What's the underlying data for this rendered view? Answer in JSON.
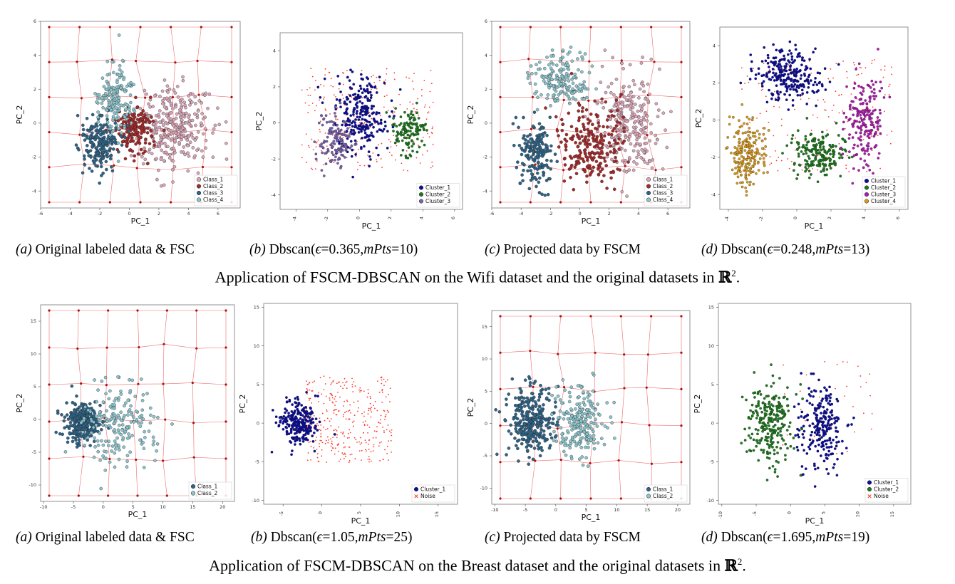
{
  "rows": [
    {
      "dataset": "Wifi",
      "app_prefix": "Application of FSCM-DBSCAN on the ",
      "app_suffix": " dataset and the original datasets in ",
      "set_symbol": "ℝ",
      "set_exponent": "2",
      "set_end": ".",
      "captions": [
        {
          "tag": "(a)",
          "text": " Original labeled data & FSC"
        },
        {
          "tag": "(b)",
          "text": " Dbscan(",
          "eps": "ϵ",
          "eps_val": "=0.365,",
          "mpts": "mPts",
          "mpts_val": "=10)"
        },
        {
          "tag": "(c)",
          "text": " Projected data by FSCM"
        },
        {
          "tag": "(d)",
          "text": " Dbscan(",
          "eps": "ϵ",
          "eps_val": "=0.248,",
          "mpts": "mPts",
          "mpts_val": "=13)"
        }
      ]
    },
    {
      "dataset": "Breast",
      "app_prefix": "Application of FSCM-DBSCAN on the ",
      "app_suffix": " dataset and the original datasets in ",
      "set_symbol": "ℝ",
      "set_exponent": "2",
      "set_end": ".",
      "captions": [
        {
          "tag": "(a)",
          "text": " Original labeled data & FSC"
        },
        {
          "tag": "(b)",
          "text": " Dbscan(",
          "eps": "ϵ",
          "eps_val": "=1.05,",
          "mpts": "mPts",
          "mpts_val": "=25)"
        },
        {
          "tag": "(c)",
          "text": " Projected data by FSCM"
        },
        {
          "tag": "(d)",
          "text": " Dbscan(",
          "eps": "ϵ",
          "eps_val": "=1.695,",
          "mpts": "mPts",
          "mpts_val": "=19)"
        }
      ]
    }
  ],
  "colors": {
    "class_1": "#d9a6b8",
    "class_2": "#a52a2a",
    "class_3": "#2e6488",
    "class_4": "#8cc4cc",
    "cluster_1": "#0d0d9e",
    "cluster_2": "#1e7a1e",
    "cluster_3": "#7b62ae",
    "cluster_4": "#d69b1c",
    "cluster_3_magenta": "#b01cb0",
    "noise": "#ff3b2f",
    "grid": "#e63c3c"
  },
  "chart_data": [
    {
      "id": "wifi-a",
      "type": "scatter",
      "title": "",
      "xlabel": "PC_1",
      "ylabel": "PC_2",
      "xlim": [
        -6,
        7.5
      ],
      "ylim": [
        -5,
        6
      ],
      "xticks": [
        "-6",
        "-4",
        "-2",
        "0",
        "2",
        "4",
        "6"
      ],
      "yticks": [
        "-4",
        "-2",
        "0",
        "2",
        "4",
        "6"
      ],
      "fsc_grid": true,
      "legend_loc": "lower-right",
      "series": [
        {
          "name": "Class_1",
          "color": "#d9a6b8",
          "n": 320,
          "clusters": [
            {
              "cx": 3.0,
              "cy": -0.3,
              "sx": 1.15,
              "sy": 1.2
            }
          ]
        },
        {
          "name": "Class_2",
          "color": "#a52a2a",
          "n": 170,
          "clusters": [
            {
              "cx": 0.3,
              "cy": -0.3,
              "sx": 0.6,
              "sy": 0.7
            }
          ]
        },
        {
          "name": "Class_3",
          "color": "#2e6488",
          "n": 200,
          "clusters": [
            {
              "cx": -1.9,
              "cy": -1.2,
              "sx": 0.6,
              "sy": 0.8
            }
          ]
        },
        {
          "name": "Class_4",
          "color": "#8cc4cc",
          "n": 170,
          "clusters": [
            {
              "cx": -1.0,
              "cy": 1.5,
              "sx": 0.55,
              "sy": 1.0
            }
          ]
        }
      ]
    },
    {
      "id": "wifi-b",
      "type": "scatter",
      "title": "",
      "xlabel": "PC_1",
      "ylabel": "PC_2",
      "xlim": [
        -5,
        6.5
      ],
      "ylim": [
        -4.8,
        5
      ],
      "xticks": [
        "-4",
        "-2",
        "0",
        "2",
        "4",
        "6"
      ],
      "yticks": [
        "-4",
        "-2",
        "0",
        "2",
        "4"
      ],
      "xtick_rotate": true,
      "fsc_grid": false,
      "legend_loc": "lower-right",
      "series": [
        {
          "name": "",
          "color": "#ff3b2f",
          "n": 230,
          "noise": true,
          "clusters": [
            {
              "cx": 0.5,
              "cy": 0.2,
              "sx": 2.6,
              "sy": 1.8
            }
          ]
        },
        {
          "name": "Cluster_1",
          "color": "#0d0d9e",
          "n": 260,
          "clusters": [
            {
              "cx": 0.1,
              "cy": 0.5,
              "sx": 0.8,
              "sy": 1.1
            }
          ]
        },
        {
          "name": "Cluster_2",
          "color": "#1e7a1e",
          "n": 120,
          "clusters": [
            {
              "cx": 3.0,
              "cy": -0.5,
              "sx": 0.55,
              "sy": 0.55
            }
          ]
        },
        {
          "name": "Cluster_3",
          "color": "#7b62ae",
          "n": 130,
          "clusters": [
            {
              "cx": -1.5,
              "cy": -1.0,
              "sx": 0.5,
              "sy": 0.8
            }
          ]
        }
      ]
    },
    {
      "id": "wifi-c",
      "type": "scatter",
      "title": "",
      "xlabel": "PC_1",
      "ylabel": "PC_2",
      "xlim": [
        -6,
        7.5
      ],
      "ylim": [
        -5,
        6
      ],
      "xticks": [
        "-6",
        "-4",
        "-2",
        "0",
        "2",
        "4",
        "6"
      ],
      "yticks": [
        "-4",
        "-2",
        "0",
        "2",
        "4",
        "6"
      ],
      "fsc_grid": true,
      "legend_loc": "lower-right",
      "series": [
        {
          "name": "Class_1",
          "color": "#d9a6b8",
          "n": 260,
          "clusters": [
            {
              "cx": 3.5,
              "cy": 0.0,
              "sx": 1.0,
              "sy": 1.5
            }
          ]
        },
        {
          "name": "Class_2",
          "color": "#a52a2a",
          "n": 240,
          "clusters": [
            {
              "cx": 0.8,
              "cy": -1.2,
              "sx": 1.2,
              "sy": 1.2
            }
          ]
        },
        {
          "name": "Class_3",
          "color": "#2e6488",
          "n": 180,
          "clusters": [
            {
              "cx": -3.0,
              "cy": -1.8,
              "sx": 0.55,
              "sy": 1.0
            }
          ]
        },
        {
          "name": "Class_4",
          "color": "#8cc4cc",
          "n": 180,
          "clusters": [
            {
              "cx": -1.3,
              "cy": 2.7,
              "sx": 1.0,
              "sy": 0.8
            }
          ]
        }
      ]
    },
    {
      "id": "wifi-d",
      "type": "scatter",
      "title": "",
      "xlabel": "PC_1",
      "ylabel": "PC_2",
      "xlim": [
        -4.5,
        6.5
      ],
      "ylim": [
        -4.8,
        5
      ],
      "xticks": [
        "-4",
        "-2",
        "0",
        "2",
        "4",
        "6"
      ],
      "yticks": [
        "-4",
        "-2",
        "0",
        "2",
        "4"
      ],
      "xtick_rotate": true,
      "fsc_grid": false,
      "legend_loc": "lower-right",
      "series": [
        {
          "name": "",
          "color": "#ff3b2f",
          "n": 180,
          "noise": true,
          "clusters": [
            {
              "cx": 1.2,
              "cy": 0.2,
              "sx": 2.8,
              "sy": 1.9
            }
          ]
        },
        {
          "name": "Cluster_1",
          "color": "#0d0d9e",
          "n": 260,
          "clusters": [
            {
              "cx": -0.5,
              "cy": 2.5,
              "sx": 1.0,
              "sy": 0.75
            }
          ]
        },
        {
          "name": "Cluster_2",
          "color": "#1e7a1e",
          "n": 200,
          "clusters": [
            {
              "cx": 1.3,
              "cy": -1.8,
              "sx": 0.8,
              "sy": 0.6
            }
          ]
        },
        {
          "name": "Cluster_3",
          "color": "#b01cb0",
          "n": 200,
          "clusters": [
            {
              "cx": 4.0,
              "cy": 0.0,
              "sx": 0.55,
              "sy": 1.3
            }
          ]
        },
        {
          "name": "Cluster_4",
          "color": "#d69b1c",
          "n": 200,
          "clusters": [
            {
              "cx": -2.9,
              "cy": -1.8,
              "sx": 0.5,
              "sy": 0.9
            }
          ]
        }
      ]
    },
    {
      "id": "breast-a",
      "type": "scatter",
      "title": "",
      "xlabel": "PC_1",
      "ylabel": "PC_2",
      "xlim": [
        -10.5,
        22
      ],
      "ylim": [
        -12.5,
        17.5
      ],
      "xticks": [
        "-10",
        "-5",
        "0",
        "5",
        "10",
        "15",
        "20"
      ],
      "yticks": [
        "-10",
        "-5",
        "0",
        "5",
        "10",
        "15"
      ],
      "fsc_grid": true,
      "legend_loc": "lower-right",
      "series": [
        {
          "name": "Class_1",
          "color": "#2e6488",
          "n": 300,
          "clusters": [
            {
              "cx": -3.5,
              "cy": -0.5,
              "sx": 1.4,
              "sy": 1.5
            }
          ]
        },
        {
          "name": "Class_2",
          "color": "#8cc4cc",
          "n": 200,
          "clusters": [
            {
              "cx": 2.5,
              "cy": -0.5,
              "sx": 3.0,
              "sy": 3.2
            }
          ]
        }
      ]
    },
    {
      "id": "breast-b",
      "type": "scatter",
      "title": "",
      "xlabel": "PC_1",
      "ylabel": "PC_2",
      "xlim": [
        -7.5,
        17.5
      ],
      "ylim": [
        -10.5,
        15.5
      ],
      "xticks": [
        "-5",
        "0",
        "5",
        "10",
        "15"
      ],
      "yticks": [
        "-10",
        "-5",
        "0",
        "5",
        "10",
        "15"
      ],
      "xtick_rotate": true,
      "fsc_grid": false,
      "legend_loc": "lower-right",
      "series": [
        {
          "name": "Noise",
          "color": "#ff3b2f",
          "n": 340,
          "noise": true,
          "clusters": [
            {
              "cx": 3.5,
              "cy": 0.5,
              "sx": 3.5,
              "sy": 3.5
            }
          ]
        },
        {
          "name": "Cluster_1",
          "color": "#0d0d9e",
          "n": 250,
          "clusters": [
            {
              "cx": -2.8,
              "cy": 0.0,
              "sx": 1.2,
              "sy": 1.4
            }
          ]
        }
      ]
    },
    {
      "id": "breast-c",
      "type": "scatter",
      "title": "",
      "xlabel": "PC_1",
      "ylabel": "PC_2",
      "xlim": [
        -10.5,
        22
      ],
      "ylim": [
        -12.5,
        17.5
      ],
      "xticks": [
        "-10",
        "-5",
        "0",
        "5",
        "10",
        "15",
        "20"
      ],
      "yticks": [
        "-10",
        "-5",
        "0",
        "5",
        "10",
        "15"
      ],
      "fsc_grid": true,
      "legend_loc": "lower-right",
      "series": [
        {
          "name": "Class_1",
          "color": "#2e6488",
          "n": 300,
          "clusters": [
            {
              "cx": -4.0,
              "cy": 0.5,
              "sx": 1.9,
              "sy": 2.4
            }
          ]
        },
        {
          "name": "Class_2",
          "color": "#8cc4cc",
          "n": 220,
          "clusters": [
            {
              "cx": 4.0,
              "cy": 0.0,
              "sx": 2.0,
              "sy": 3.0
            }
          ]
        }
      ]
    },
    {
      "id": "breast-d",
      "type": "scatter",
      "title": "",
      "xlabel": "PC_1",
      "ylabel": "PC_2",
      "xlim": [
        -10.5,
        17.5
      ],
      "ylim": [
        -10.5,
        15.5
      ],
      "xticks": [
        "-10",
        "-5",
        "0",
        "5",
        "10",
        "15"
      ],
      "yticks": [
        "-10",
        "-5",
        "0",
        "5",
        "10",
        "15"
      ],
      "xtick_rotate": true,
      "fsc_grid": false,
      "legend_loc": "lower-right",
      "series": [
        {
          "name": "Noise",
          "color": "#ff3b2f",
          "n": 40,
          "noise": true,
          "clusters": [
            {
              "cx": 5.0,
              "cy": 2.0,
              "sx": 4.5,
              "sy": 4.0
            }
          ]
        },
        {
          "name": "Cluster_1",
          "color": "#0d0d9e",
          "n": 230,
          "clusters": [
            {
              "cx": 4.5,
              "cy": -0.5,
              "sx": 1.6,
              "sy": 2.8
            }
          ]
        },
        {
          "name": "Cluster_2",
          "color": "#1e7a1e",
          "n": 260,
          "clusters": [
            {
              "cx": -3.0,
              "cy": 0.0,
              "sx": 1.7,
              "sy": 2.6
            }
          ]
        }
      ]
    }
  ]
}
